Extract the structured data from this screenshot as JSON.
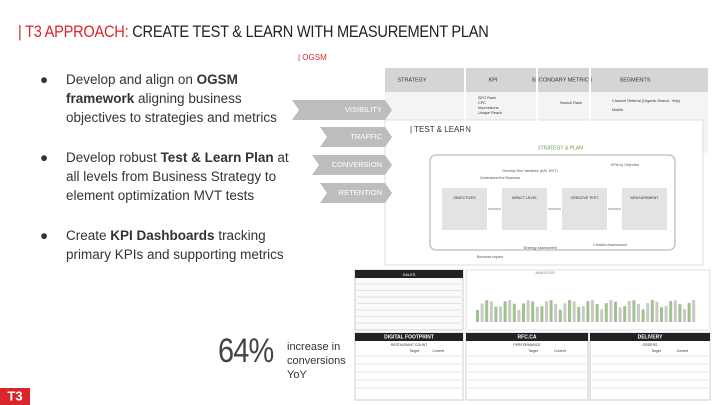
{
  "header": {
    "prefix": "| T3 APPROACH:",
    "title": "CREATE TEST & LEARN WITH MEASUREMENT PLAN"
  },
  "bullets": [
    {
      "before": "Develop and align on ",
      "bold": "OGSM framework",
      "after": " aligning business objectives to strategies and metrics"
    },
    {
      "before": "Develop robust ",
      "bold": "Test & Learn Plan",
      "after": " at all levels from Business Strategy to element optimization MVT tests"
    },
    {
      "before": "Create ",
      "bold": "KPI Dashboards",
      "after": " tracking primary KPIs and supporting metrics"
    }
  ],
  "stat": {
    "value": "64%",
    "caption": "increase in conversions YoY"
  },
  "logo": "T3",
  "ogsm": {
    "label": "| OGSM",
    "funnel": [
      "VISIBILITY",
      "TRAFFIC",
      "CONVERSION",
      "RETENTION"
    ],
    "columns": [
      "STRATEGY",
      "KPI",
      "SECONDARY METRICS",
      "SEGMENTS"
    ],
    "kpis": [
      "SEO Rank",
      "CPC",
      "Impressions",
      "Unique Reach"
    ],
    "secondary": [
      "Search Rank"
    ],
    "segments": [
      "Channel Referral (Organic Search, Yelp)",
      "Mobile"
    ]
  },
  "test_learn": {
    "label": "| TEST & LEARN",
    "heading": "STRATEGY & PLAN",
    "steps": [
      "OBJECTIVES",
      "IMPACT LEVEL",
      "CREATIVE TEST",
      "MEASUREMENT"
    ],
    "notes": [
      "Understand the Business",
      "Develop Test Variables (A/B, MVT)",
      "KPIs by Objective",
      "Creative Assessment",
      "Strategy Assessment",
      "Business Impact"
    ]
  },
  "dashboards": {
    "sales_title": "SALES",
    "analysis_title": "ANALYSIS",
    "tables": [
      {
        "title": "DIGITAL FOOTPRINT",
        "subtitle": "RESTAURANT COUNT"
      },
      {
        "title": "RFC.CA",
        "subtitle": "PERFORMANCE"
      },
      {
        "title": "DELIVERY",
        "subtitle": "ORDERS"
      }
    ],
    "columns": [
      "Target",
      "Current"
    ]
  }
}
